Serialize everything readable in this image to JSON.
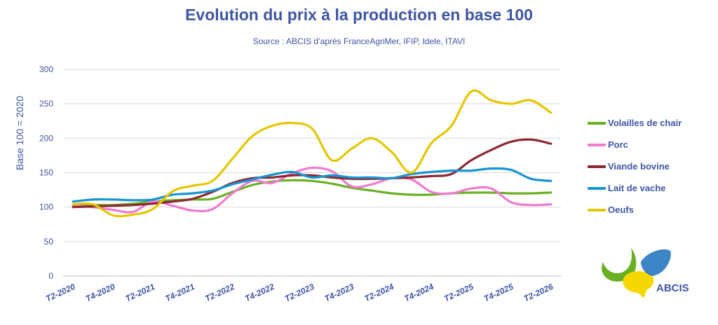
{
  "chart_data": {
    "type": "line",
    "title": "Evolution du prix à la production en base 100",
    "subtitle": "Source : ABCIS d’après FranceAgriMer, IFIP, Idele, ITAVI",
    "ylabel": "Base 100 = 2020",
    "xlabel": "",
    "ylim": [
      0,
      300
    ],
    "yticks": [
      0,
      50,
      100,
      150,
      200,
      250,
      300
    ],
    "grid": true,
    "legend_position": "right",
    "x": [
      "T2-2020",
      "T3-2020",
      "T4-2020",
      "T1-2021",
      "T2-2021",
      "T3-2021",
      "T4-2021",
      "T1-2022",
      "T2-2022",
      "T3-2022",
      "T4-2022",
      "T1-2023",
      "T2-2023",
      "T3-2023",
      "T4-2023",
      "T1-2024",
      "T2-2024",
      "T3-2024",
      "T4-2024",
      "T1-2025",
      "T2-2025",
      "T3-2025",
      "T4-2025",
      "T1-2026",
      "T2-2026"
    ],
    "xtick_labels": [
      "T2-2020",
      "T4-2020",
      "T2-2021",
      "T4-2021",
      "T2-2022",
      "T4-2022",
      "T2-2023",
      "T4-2023",
      "T2-2024",
      "T4-2024",
      "T2-2025",
      "T4-2025",
      "T2-2026"
    ],
    "series": [
      {
        "name": "Volailles de chair",
        "color": "#6ab023",
        "values": [
          102,
          103,
          103,
          105,
          108,
          110,
          111,
          112,
          122,
          132,
          137,
          139,
          138,
          134,
          128,
          124,
          120,
          118,
          118,
          120,
          121,
          121,
          120,
          120,
          121
        ]
      },
      {
        "name": "Porc",
        "color": "#f07ad0",
        "values": [
          102,
          100,
          96,
          93,
          108,
          102,
          95,
          97,
          120,
          138,
          135,
          149,
          157,
          152,
          130,
          133,
          142,
          140,
          122,
          120,
          127,
          127,
          107,
          103,
          104
        ]
      },
      {
        "name": "Viande bovine",
        "color": "#8c2832",
        "values": [
          100,
          101,
          102,
          103,
          105,
          108,
          112,
          122,
          135,
          142,
          143,
          146,
          146,
          143,
          141,
          141,
          142,
          143,
          145,
          148,
          168,
          183,
          195,
          198,
          192
        ]
      },
      {
        "name": "Lait de vache",
        "color": "#1794d2",
        "values": [
          108,
          111,
          111,
          110,
          111,
          118,
          120,
          124,
          133,
          140,
          147,
          151,
          143,
          146,
          143,
          143,
          142,
          148,
          151,
          153,
          153,
          156,
          154,
          141,
          138
        ]
      },
      {
        "name": "Oeufs",
        "color": "#e5c700",
        "values": [
          104,
          104,
          88,
          89,
          97,
          123,
          131,
          138,
          170,
          203,
          218,
          222,
          214,
          168,
          185,
          200,
          180,
          150,
          193,
          218,
          268,
          255,
          250,
          255,
          237
        ]
      }
    ]
  },
  "logo": {
    "text": "ABCIS",
    "colors": [
      "#6ab023",
      "#f5d800",
      "#2b7bc2"
    ]
  }
}
